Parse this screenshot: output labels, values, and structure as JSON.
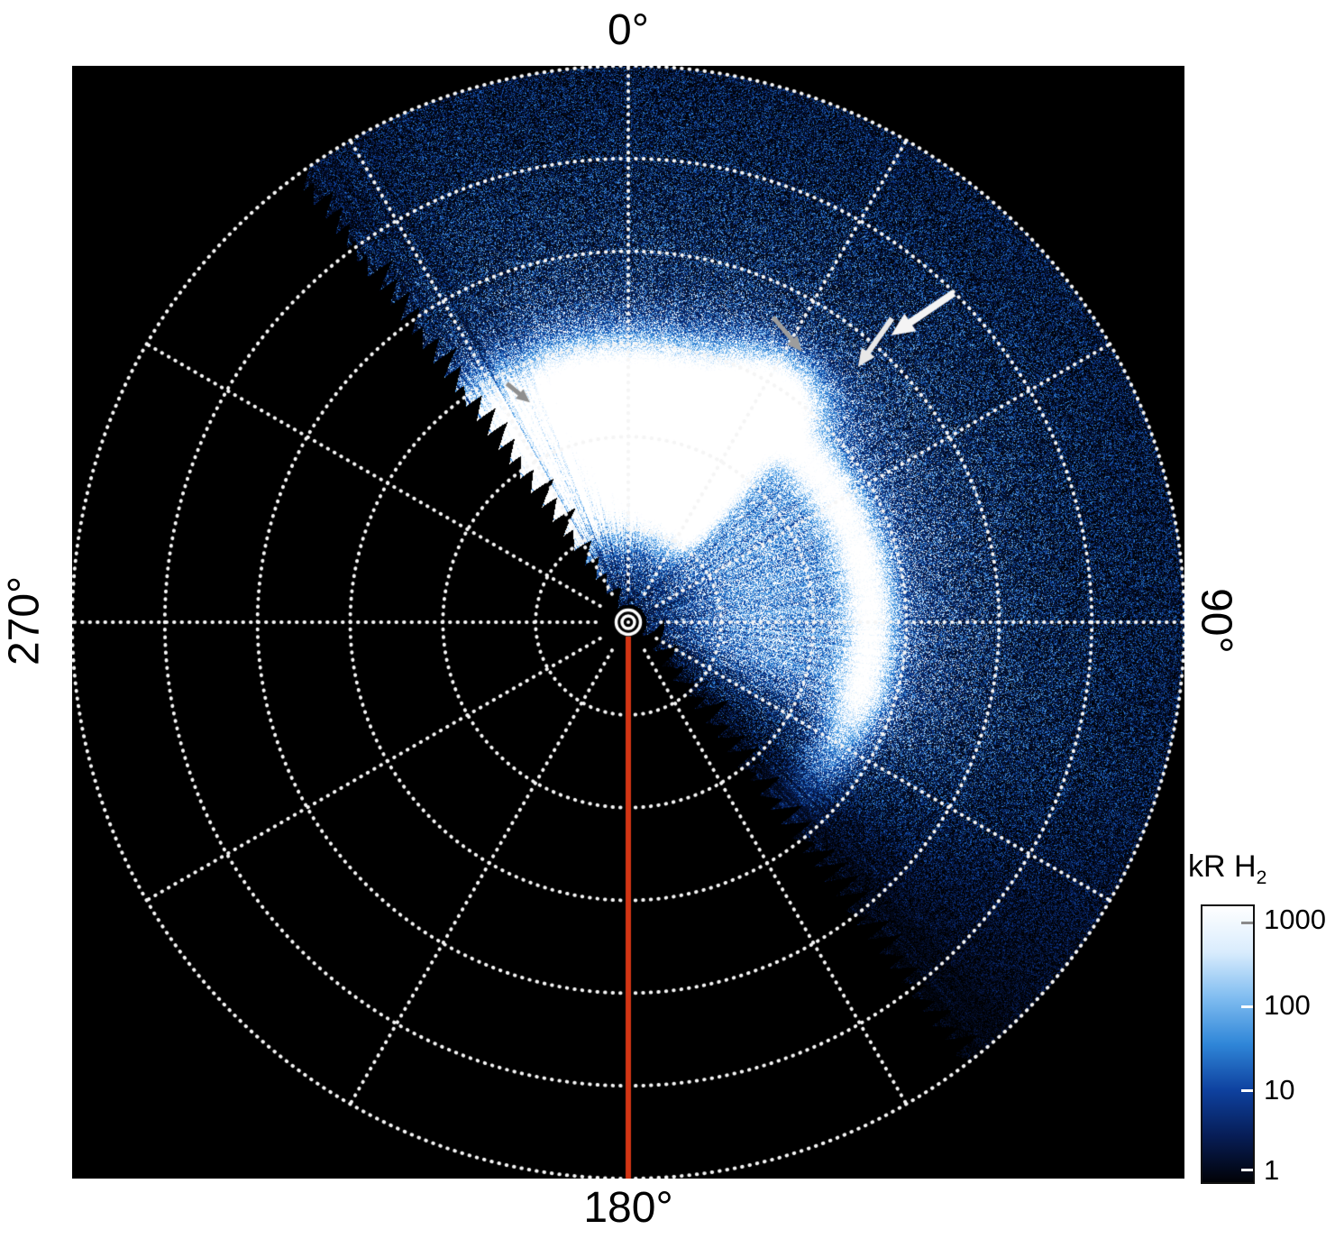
{
  "figure": {
    "background": "#ffffff",
    "plot_background": "#000000"
  },
  "chart_data": {
    "type": "heatmap",
    "projection": "polar",
    "title": "",
    "description": "Polar projection map of auroral H2 emission brightness on a logarithmic color scale (kilorayleigh). Data fill the observed sector between roughly -37 and 143 degrees azimuth; a bright main auroral oval with an outlying emission patch is indicated by gray and white arrows; a red line marks the 180-degree meridian.",
    "angular_ticks": [
      {
        "angle_deg": 0,
        "label": "0°"
      },
      {
        "angle_deg": 90,
        "label": "90°"
      },
      {
        "angle_deg": 180,
        "label": "180°"
      },
      {
        "angle_deg": 270,
        "label": "270°"
      }
    ],
    "grid": {
      "rings": 6,
      "radial_step_deg": 30,
      "style": "dotted",
      "color": "#f5f5f5"
    },
    "sector": {
      "start_deg": -37,
      "end_deg": 143
    },
    "emission": {
      "oval_radius_frac": 0.435,
      "blob": {
        "az_end": 40,
        "center_frac": 0.33,
        "flat_frac": 0.1,
        "sigma_frac": 0.055,
        "amp": 1.25
      },
      "arc": {
        "sigma_frac": 0.032,
        "amp": 0.9
      },
      "inner_glow": {
        "radius_frac": 0.27,
        "sigma_frac": 0.17,
        "amp": 0.5
      },
      "patch": {
        "az_deg": 33,
        "az_sigma_deg": 8,
        "radius_frac": 0.5,
        "sigma_frac": 0.045,
        "amp": 0.8
      },
      "speckle": {
        "floor": 0.1,
        "amp": 0.32
      },
      "fade_start_deg": 108
    },
    "meridian": {
      "angle_deg": 180,
      "color": "#d23514"
    },
    "center_marker": {
      "ring_radii": [
        13.5,
        7
      ],
      "color": "#ffffff"
    },
    "arrows": [
      {
        "tip_az_deg": -24.1,
        "tip_r_frac": 0.433,
        "dir_deg": 39,
        "len": 33,
        "width": 5,
        "head": 15,
        "color": "#8f8f8f"
      },
      {
        "tip_az_deg": 32.7,
        "tip_r_frac": 0.578,
        "dir_deg": 50,
        "len": 50,
        "width": 5,
        "head": 17,
        "color": "#9d9d9d"
      },
      {
        "tip_az_deg": 42.0,
        "tip_r_frac": 0.617,
        "dir_deg": 125,
        "len": 66,
        "width": 6,
        "head": 20,
        "color": "#e8e8e8"
      },
      {
        "tip_az_deg": 42.5,
        "tip_r_frac": 0.699,
        "dir_deg": 146,
        "len": 84,
        "width": 8,
        "head": 26,
        "color": "#f4f4f4"
      }
    ],
    "colorbar": {
      "title_main": "kR H",
      "title_sub": "2",
      "scale": "log",
      "range": [
        1,
        1000
      ],
      "ticks": [
        "1000",
        "100",
        "10",
        "1"
      ],
      "gradient": [
        "#010207",
        "#071d56",
        "#0e419f",
        "#2f86d8",
        "#7fbcf0",
        "#d9ecfd",
        "#ffffff"
      ]
    }
  }
}
